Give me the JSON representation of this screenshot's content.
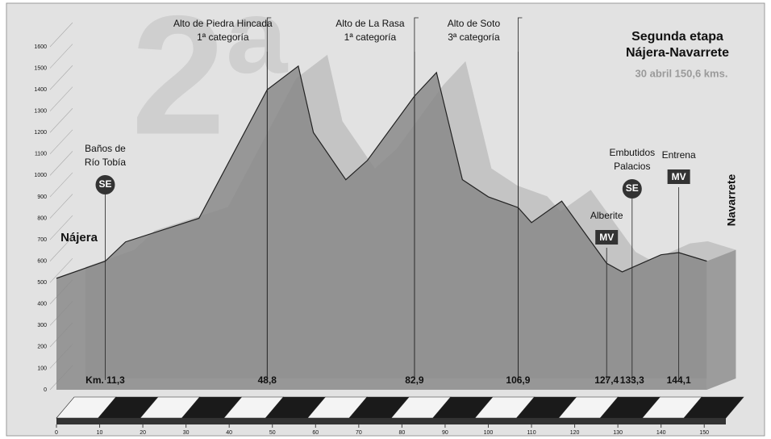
{
  "chart_data": {
    "type": "area",
    "title": "Segunda etapa",
    "subtitle": "Nájera-Navarrete",
    "date_line": "30 abril 150,6 kms.",
    "watermark": "2ª",
    "start": "Nájera",
    "finish": "Navarrete",
    "x": [
      0,
      11.3,
      16,
      33,
      48.8,
      56,
      59.5,
      67,
      72,
      82.9,
      88,
      94,
      100,
      106.9,
      110,
      117,
      127.4,
      131,
      140,
      144.1,
      150.6
    ],
    "values": [
      520,
      600,
      690,
      800,
      1400,
      1510,
      1200,
      980,
      1070,
      1370,
      1480,
      980,
      900,
      850,
      780,
      880,
      590,
      550,
      630,
      640,
      600
    ],
    "color": "#8a8a8a",
    "xlim": [
      0,
      155
    ],
    "ylim": [
      0,
      1600
    ],
    "xticks": [
      0,
      10,
      20,
      30,
      40,
      50,
      60,
      70,
      80,
      90,
      100,
      110,
      120,
      130,
      140,
      150
    ],
    "yticks": [
      0,
      100,
      200,
      300,
      400,
      500,
      600,
      700,
      800,
      900,
      1000,
      1100,
      1200,
      1300,
      1400,
      1500,
      1600
    ],
    "markers": [
      {
        "km": {
          "value": 11.3,
          "label": "Km. 11,3"
        },
        "name": [
          "Baños de",
          "Río Tobía"
        ],
        "badge": "SE"
      },
      {
        "km": {
          "value": 48.8,
          "label": "48,8"
        },
        "name": [
          "Alto de Piedra Hincada",
          "1ª categoría"
        ]
      },
      {
        "km": {
          "value": 82.9,
          "label": "82,9"
        },
        "name": [
          "Alto de La Rasa",
          "1ª categoría"
        ]
      },
      {
        "km": {
          "value": 106.9,
          "label": "106,9"
        },
        "name": [
          "Alto de Soto",
          "3ª categoría"
        ]
      },
      {
        "km": {
          "value": 127.4,
          "label": "127,4"
        },
        "name": [
          "Alberite"
        ],
        "badge": "MV"
      },
      {
        "km": {
          "value": 133.3,
          "label": "133,3"
        },
        "name": [
          "Embutidos",
          "Palacios"
        ],
        "badge": "SE"
      },
      {
        "km": {
          "value": 144.1,
          "label": "144,1"
        },
        "name": [
          "Entrena"
        ],
        "badge": "MV"
      }
    ]
  }
}
